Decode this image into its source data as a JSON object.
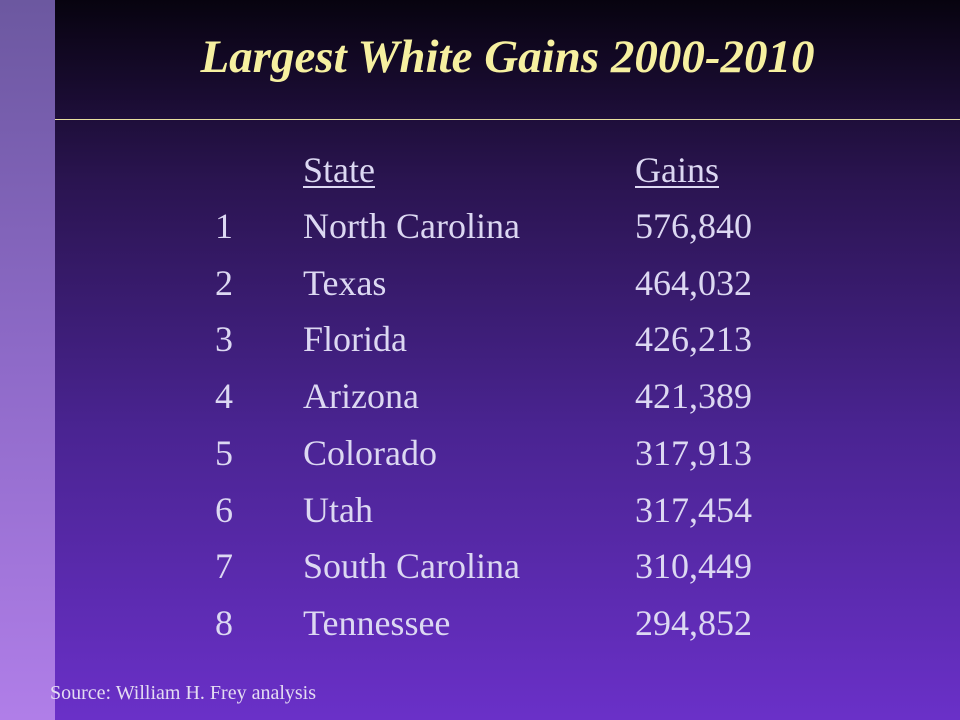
{
  "title": "Largest White Gains 2000-2010",
  "table": {
    "header": [
      "State",
      "Gains"
    ],
    "rows": [
      [
        1,
        "North Carolina",
        "576,840"
      ],
      [
        2,
        "Texas",
        "464,032"
      ],
      [
        3,
        "Florida",
        "426,213"
      ],
      [
        4,
        "Arizona",
        "421,389"
      ],
      [
        5,
        "Colorado",
        "317,913"
      ],
      [
        6,
        "Utah",
        "317,454"
      ],
      [
        7,
        "South Carolina",
        "310,449"
      ],
      [
        8,
        "Tennessee",
        "294,852"
      ]
    ]
  },
  "source": "Source: William H. Frey analysis"
}
